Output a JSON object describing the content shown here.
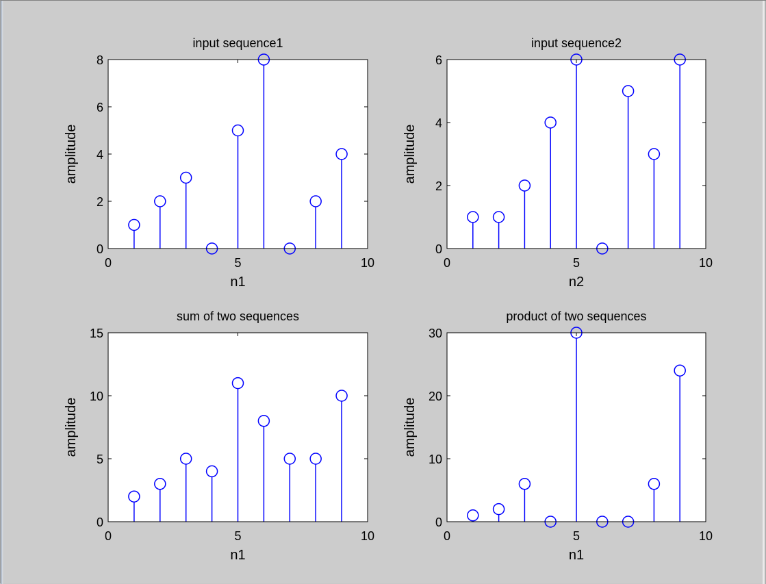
{
  "chart_data": [
    {
      "type": "stem",
      "title": "input sequence1",
      "xlabel": "n1",
      "ylabel": "amplitude",
      "xlim": [
        0,
        10
      ],
      "ylim": [
        0,
        8
      ],
      "xticks": [
        0,
        5,
        10
      ],
      "yticks": [
        0,
        2,
        4,
        6,
        8
      ],
      "x": [
        1,
        2,
        3,
        4,
        5,
        6,
        7,
        8,
        9
      ],
      "values": [
        1,
        2,
        3,
        0,
        5,
        8,
        0,
        2,
        4
      ],
      "color": "#0000ff",
      "grid": false
    },
    {
      "type": "stem",
      "title": "input sequence2",
      "xlabel": "n2",
      "ylabel": "amplitude",
      "xlim": [
        0,
        10
      ],
      "ylim": [
        0,
        6
      ],
      "xticks": [
        0,
        5,
        10
      ],
      "yticks": [
        0,
        2,
        4,
        6
      ],
      "x": [
        1,
        2,
        3,
        4,
        5,
        6,
        7,
        8,
        9
      ],
      "values": [
        1,
        1,
        2,
        4,
        6,
        0,
        5,
        3,
        6
      ],
      "color": "#0000ff",
      "grid": false
    },
    {
      "type": "stem",
      "title": "sum of two sequences",
      "xlabel": "n1",
      "ylabel": "amplitude",
      "xlim": [
        0,
        10
      ],
      "ylim": [
        0,
        15
      ],
      "xticks": [
        0,
        5,
        10
      ],
      "yticks": [
        0,
        5,
        10,
        15
      ],
      "x": [
        1,
        2,
        3,
        4,
        5,
        6,
        7,
        8,
        9
      ],
      "values": [
        2,
        3,
        5,
        4,
        11,
        8,
        5,
        5,
        10
      ],
      "color": "#0000ff",
      "grid": false
    },
    {
      "type": "stem",
      "title": "product of two sequences",
      "xlabel": "n1",
      "ylabel": "amplitude",
      "xlim": [
        0,
        10
      ],
      "ylim": [
        0,
        30
      ],
      "xticks": [
        0,
        5,
        10
      ],
      "yticks": [
        0,
        10,
        20,
        30
      ],
      "x": [
        1,
        2,
        3,
        4,
        5,
        6,
        7,
        8,
        9
      ],
      "values": [
        1,
        2,
        6,
        0,
        30,
        0,
        0,
        6,
        24
      ],
      "color": "#0000ff",
      "grid": false
    }
  ],
  "figure": {
    "background": "#cccccc",
    "axes_background": "#ffffff"
  }
}
